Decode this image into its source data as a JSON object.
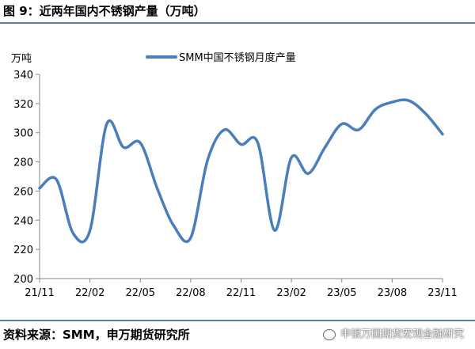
{
  "header": {
    "title": "图 9：近两年国内不锈钢产量（万吨）"
  },
  "footer": {
    "source": "资料来源：SMM，申万期货研究所",
    "watermark": "申银万国期货宏观金融研究"
  },
  "colors": {
    "line": "#4a7ebb",
    "rule": "#5a7fae",
    "axis": "#888888"
  },
  "chart_data": {
    "type": "line",
    "title": "",
    "xlabel": "",
    "ylabel": "万吨",
    "ylim": [
      200,
      340
    ],
    "yticks": [
      200,
      220,
      240,
      260,
      280,
      300,
      320,
      340
    ],
    "grid": false,
    "legend_position": "top-center",
    "x": [
      "21/11",
      "21/12",
      "22/01",
      "22/02",
      "22/03",
      "22/04",
      "22/05",
      "22/06",
      "22/07",
      "22/08",
      "22/09",
      "22/10",
      "22/11",
      "22/12",
      "23/01",
      "23/02",
      "23/03",
      "23/04",
      "23/05",
      "23/06",
      "23/07",
      "23/08",
      "23/09",
      "23/10",
      "23/11"
    ],
    "xtick_labels": [
      "21/11",
      "22/02",
      "22/05",
      "22/08",
      "22/11",
      "23/02",
      "23/05",
      "23/08",
      "23/11"
    ],
    "series": [
      {
        "name": "SMM中国不锈钢月度产量",
        "values": [
          262,
          268,
          231,
          233,
          306,
          290,
          293,
          262,
          236,
          228,
          281,
          302,
          292,
          293,
          233,
          283,
          272,
          290,
          306,
          302,
          316,
          321,
          322,
          313,
          299
        ]
      }
    ]
  }
}
